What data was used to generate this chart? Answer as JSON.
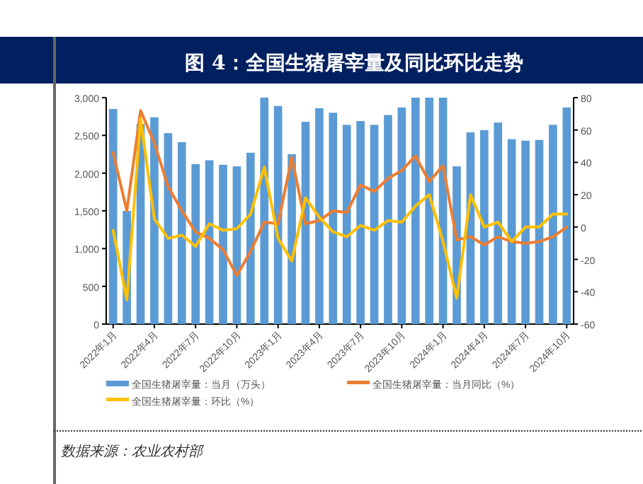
{
  "chart_data": {
    "type": "bar",
    "title": "图 4：全国生猪屠宰量及同比环比走势",
    "categories": [
      "2022年1月",
      null,
      null,
      "2022年4月",
      null,
      null,
      "2022年7月",
      null,
      null,
      "2022年10月",
      null,
      null,
      "2023年1月",
      null,
      null,
      "2023年4月",
      null,
      null,
      "2023年7月",
      null,
      null,
      "2023年10月",
      null,
      null,
      "2024年1月",
      null,
      null,
      "2024年4月",
      null,
      null,
      "2024年7月",
      null,
      null,
      "2024年10月"
    ],
    "series": [
      {
        "name": "全国生猪屠宰量：当月（万头）",
        "color": "#5b9bd5",
        "values": [
          2850,
          1500,
          2650,
          2740,
          2530,
          2410,
          2120,
          2170,
          2110,
          2090,
          2270,
          3000,
          2890,
          2250,
          2680,
          2860,
          2800,
          2640,
          2690,
          2640,
          2770,
          2870,
          3000,
          3000,
          3000,
          2090,
          2540,
          2570,
          2670,
          2450,
          2430,
          2440,
          2640,
          2870
        ]
      },
      {
        "name": "全国生猪屠宰量：当月同比（%）",
        "type": "line",
        "axis": "y2",
        "color": "#ed7d31",
        "values": [
          46,
          10,
          72,
          52,
          25,
          10,
          -3,
          -7,
          -14,
          -30,
          -15,
          3,
          2,
          43,
          2,
          4,
          10,
          9,
          26,
          22,
          30,
          35,
          44,
          28,
          38,
          -8,
          -6,
          -11,
          -6,
          -9,
          -10,
          -9,
          -6,
          0
        ]
      },
      {
        "name": "全国生猪屠宰量：环比（%）",
        "type": "line",
        "axis": "y2",
        "color": "#ffc000",
        "values": [
          -2,
          -45,
          67,
          5,
          -7,
          -5,
          -12,
          2,
          -2,
          -1,
          8,
          37,
          -7,
          -21,
          18,
          6,
          -3,
          -6,
          1,
          -2,
          4,
          3,
          13,
          20,
          -9,
          -44,
          20,
          0,
          3,
          -9,
          0,
          0,
          8,
          8
        ]
      }
    ],
    "ylim": [
      0,
      3000
    ],
    "yticks": [
      0,
      500,
      {
        "value": 1000,
        "label": "1,000"
      },
      {
        "value": 1500,
        "label": "1,500"
      },
      {
        "value": 2000,
        "label": "2,000"
      },
      {
        "value": 2500,
        "label": "2,500"
      },
      {
        "value": 3000,
        "label": "3,000"
      }
    ],
    "y2lim": [
      -60,
      80
    ],
    "y2ticks": [
      -60,
      -40,
      -20,
      0,
      20,
      40,
      60,
      80
    ],
    "legend": "bottom",
    "annotations": [
      "数据来源：农业农村部"
    ]
  }
}
